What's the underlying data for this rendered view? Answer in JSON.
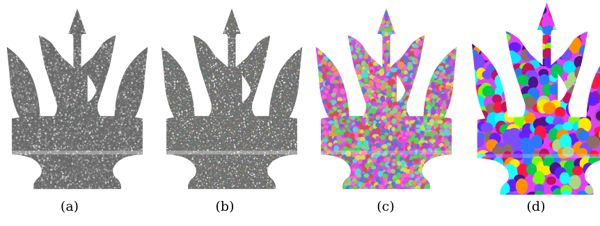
{
  "figure": {
    "panels": [
      {
        "caption": "(a)",
        "style": "dense-noise",
        "palette": [
          "#6b6b6b",
          "#8a8a8a",
          "#5a6a5a",
          "#7a6a7a",
          "#9a9a9a",
          "#c8c8c8"
        ]
      },
      {
        "caption": "(b)",
        "style": "fine-noise",
        "palette": [
          "#7a7a7a",
          "#8a7a90",
          "#6a8a7a",
          "#9a8a6a",
          "#b0b0b0",
          "#e0e0e0"
        ]
      },
      {
        "caption": "(c)",
        "style": "small-patches",
        "palette": [
          "#d94fd9",
          "#4fd94f",
          "#4f7fd9",
          "#d9d94f",
          "#d94f4f",
          "#4fd9d9",
          "#a04fd9",
          "#d99f4f",
          "#7fd97f",
          "#ff66cc"
        ]
      },
      {
        "caption": "(d)",
        "style": "large-patches",
        "palette": [
          "#e040fb",
          "#76ff03",
          "#2979ff",
          "#ffea00",
          "#ff1744",
          "#00e5ff",
          "#7c4dff",
          "#ff9100",
          "#aed581",
          "#4a148c",
          "#00c853",
          "#c51162",
          "#8d6e63",
          "#18ffff",
          "#651fff"
        ]
      }
    ]
  }
}
